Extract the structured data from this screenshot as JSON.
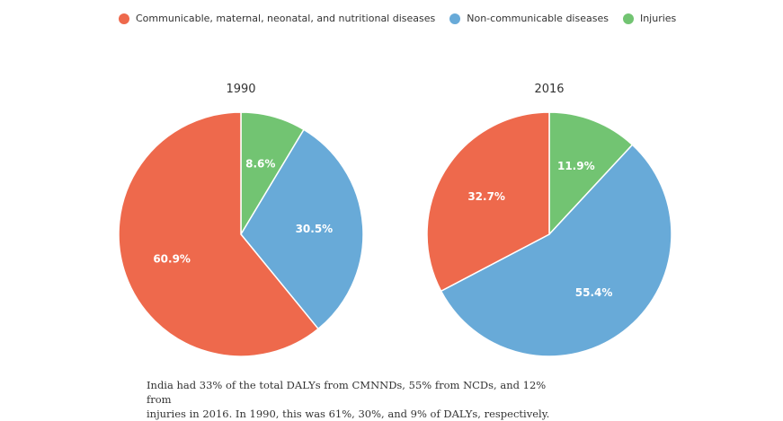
{
  "chart_data": {
    "type": "pie",
    "legend_position": "top-left",
    "series_names": [
      "Communicable, maternal, neonatal, and nutritional diseases",
      "Non-communicable diseases",
      "Injuries"
    ],
    "colors": [
      "#ee694c",
      "#68aad8",
      "#72c472"
    ],
    "pies": [
      {
        "title": "1990",
        "slices": [
          {
            "name": "Injuries",
            "value": 8.6,
            "label": "8.6%"
          },
          {
            "name": "Non-communicable diseases",
            "value": 30.5,
            "label": "30.5%"
          },
          {
            "name": "Communicable, maternal, neonatal, and nutritional diseases",
            "value": 60.9,
            "label": "60.9%"
          }
        ]
      },
      {
        "title": "2016",
        "slices": [
          {
            "name": "Injuries",
            "value": 11.9,
            "label": "11.9%"
          },
          {
            "name": "Non-communicable diseases",
            "value": 55.4,
            "label": "55.4%"
          },
          {
            "name": "Communicable, maternal, neonatal, and nutritional diseases",
            "value": 32.7,
            "label": "32.7%"
          }
        ]
      }
    ]
  },
  "caption": {
    "line1": "India had 33% of the total DALYs from CMNNDs, 55% from NCDs, and 12% from",
    "line2": "injuries in 2016. In 1990, this was 61%, 30%, and 9% of DALYs, respectively."
  }
}
